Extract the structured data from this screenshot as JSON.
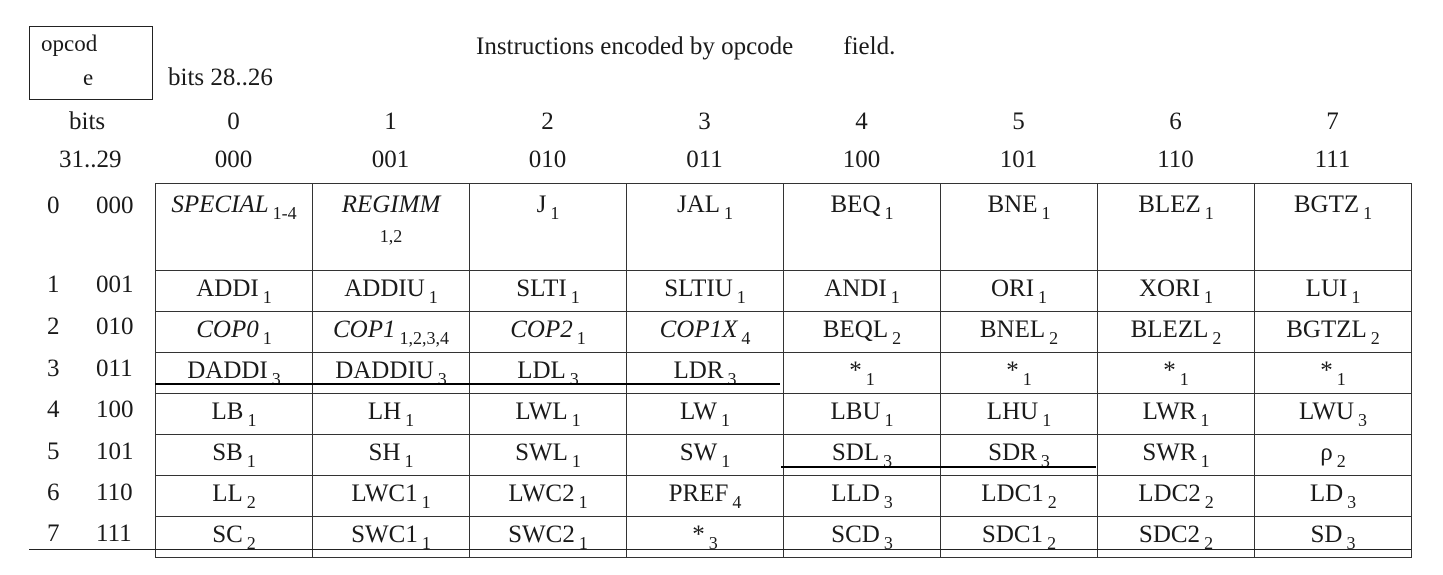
{
  "header": {
    "opcode_box": [
      "opcod",
      "e"
    ],
    "title": "Instructions encoded by opcode        field.",
    "bits_28_26": "bits 28..26",
    "bits_31_29": [
      "bits",
      "31..29"
    ]
  },
  "columns": [
    {
      "dec": "0",
      "bin": "000"
    },
    {
      "dec": "1",
      "bin": "001"
    },
    {
      "dec": "2",
      "bin": "010"
    },
    {
      "dec": "3",
      "bin": "011"
    },
    {
      "dec": "4",
      "bin": "100"
    },
    {
      "dec": "5",
      "bin": "101"
    },
    {
      "dec": "6",
      "bin": "110"
    },
    {
      "dec": "7",
      "bin": "111"
    }
  ],
  "rows": [
    {
      "dec": "0",
      "bin": "000",
      "cells": [
        {
          "name": "SPECIAL",
          "sub": "1-4",
          "italic": true
        },
        {
          "name": "REGIMM",
          "sub": "1,2",
          "italic": true
        },
        {
          "name": "J",
          "sub": "1"
        },
        {
          "name": "JAL",
          "sub": "1"
        },
        {
          "name": "BEQ",
          "sub": "1"
        },
        {
          "name": "BNE",
          "sub": "1"
        },
        {
          "name": "BLEZ",
          "sub": "1"
        },
        {
          "name": "BGTZ",
          "sub": "1"
        }
      ]
    },
    {
      "dec": "1",
      "bin": "001",
      "cells": [
        {
          "name": "ADDI",
          "sub": "1"
        },
        {
          "name": "ADDIU",
          "sub": "1"
        },
        {
          "name": "SLTI",
          "sub": "1"
        },
        {
          "name": "SLTIU",
          "sub": "1"
        },
        {
          "name": "ANDI",
          "sub": "1"
        },
        {
          "name": "ORI",
          "sub": "1"
        },
        {
          "name": "XORI",
          "sub": "1"
        },
        {
          "name": "LUI",
          "sub": "1"
        }
      ]
    },
    {
      "dec": "2",
      "bin": "010",
      "cells": [
        {
          "name": "COP0",
          "sub": "1",
          "italic": true
        },
        {
          "name": "COP1",
          "sub": "1,2,3,4",
          "italic": true
        },
        {
          "name": "COP2",
          "sub": "1",
          "italic": true
        },
        {
          "name": "COP1X",
          "sub": "4",
          "italic": true
        },
        {
          "name": "BEQL",
          "sub": "2"
        },
        {
          "name": "BNEL",
          "sub": "2"
        },
        {
          "name": "BLEZL",
          "sub": "2"
        },
        {
          "name": "BGTZL",
          "sub": "2"
        }
      ]
    },
    {
      "dec": "3",
      "bin": "011",
      "cells": [
        {
          "name": "DADDI",
          "sub": "3"
        },
        {
          "name": "DADDIU",
          "sub": "3"
        },
        {
          "name": "LDL",
          "sub": "3"
        },
        {
          "name": "LDR",
          "sub": "3"
        },
        {
          "name": "*",
          "sub": "1"
        },
        {
          "name": "*",
          "sub": "1"
        },
        {
          "name": "*",
          "sub": "1"
        },
        {
          "name": "*",
          "sub": "1"
        }
      ]
    },
    {
      "dec": "4",
      "bin": "100",
      "cells": [
        {
          "name": "LB",
          "sub": "1"
        },
        {
          "name": "LH",
          "sub": "1"
        },
        {
          "name": "LWL",
          "sub": "1"
        },
        {
          "name": "LW",
          "sub": "1"
        },
        {
          "name": "LBU",
          "sub": "1"
        },
        {
          "name": "LHU",
          "sub": "1"
        },
        {
          "name": "LWR",
          "sub": "1"
        },
        {
          "name": "LWU",
          "sub": "3"
        }
      ]
    },
    {
      "dec": "5",
      "bin": "101",
      "cells": [
        {
          "name": "SB",
          "sub": "1"
        },
        {
          "name": "SH",
          "sub": "1"
        },
        {
          "name": "SWL",
          "sub": "1"
        },
        {
          "name": "SW",
          "sub": "1"
        },
        {
          "name": "SDL",
          "sub": "3"
        },
        {
          "name": "SDR",
          "sub": "3"
        },
        {
          "name": "SWR",
          "sub": "1"
        },
        {
          "name": "ρ",
          "sub": "2"
        }
      ]
    },
    {
      "dec": "6",
      "bin": "110",
      "cells": [
        {
          "name": "LL",
          "sub": "2"
        },
        {
          "name": "LWC1",
          "sub": "1"
        },
        {
          "name": "LWC2",
          "sub": "1"
        },
        {
          "name": "PREF",
          "sub": "4"
        },
        {
          "name": "LLD",
          "sub": "3"
        },
        {
          "name": "LDC1",
          "sub": "2"
        },
        {
          "name": "LDC2",
          "sub": "2"
        },
        {
          "name": "LD",
          "sub": "3"
        }
      ]
    },
    {
      "dec": "7",
      "bin": "111",
      "cells": [
        {
          "name": "SC",
          "sub": "2"
        },
        {
          "name": "SWC1",
          "sub": "1"
        },
        {
          "name": "SWC2",
          "sub": "1"
        },
        {
          "name": "*",
          "sub": "3"
        },
        {
          "name": "SCD",
          "sub": "3"
        },
        {
          "name": "SDC1",
          "sub": "2"
        },
        {
          "name": "SDC2",
          "sub": "2"
        },
        {
          "name": "SD",
          "sub": "3"
        }
      ]
    }
  ]
}
